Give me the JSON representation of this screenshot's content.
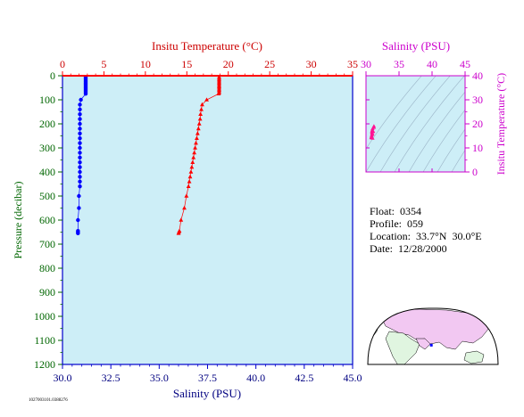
{
  "chart_data": [
    {
      "type": "scatter",
      "top_axis_label": "Insitu Temperature (°C)",
      "top_ticks": [
        0,
        5,
        10,
        15,
        20,
        25,
        30,
        35
      ],
      "top_range": [
        0,
        35
      ],
      "bottom_axis_label": "Salinity (PSU)",
      "bottom_ticks": [
        "30.0",
        "32.5",
        "35.0",
        "37.5",
        "40.0",
        "42.5",
        "45.0"
      ],
      "bottom_range": [
        30,
        45
      ],
      "ylabel": "Pressure (decibar)",
      "y_ticks": [
        0,
        100,
        200,
        300,
        400,
        500,
        600,
        700,
        800,
        900,
        1000,
        1100,
        1200
      ],
      "ylim": [
        0,
        1200
      ],
      "y_inverted": true,
      "series": [
        {
          "axis": "bottom",
          "color": "#0000ff",
          "marker": "circle",
          "points": [
            [
              31.2,
              5
            ],
            [
              31.2,
              10
            ],
            [
              31.2,
              15
            ],
            [
              31.2,
              20
            ],
            [
              31.2,
              25
            ],
            [
              31.2,
              30
            ],
            [
              31.2,
              35
            ],
            [
              31.2,
              40
            ],
            [
              31.2,
              45
            ],
            [
              31.2,
              50
            ],
            [
              31.2,
              55
            ],
            [
              31.2,
              60
            ],
            [
              31.2,
              65
            ],
            [
              31.2,
              70
            ],
            [
              31.2,
              75
            ],
            [
              30.95,
              100
            ],
            [
              30.9,
              120
            ],
            [
              30.9,
              140
            ],
            [
              30.9,
              160
            ],
            [
              30.9,
              180
            ],
            [
              30.9,
              200
            ],
            [
              30.9,
              220
            ],
            [
              30.9,
              240
            ],
            [
              30.9,
              260
            ],
            [
              30.9,
              280
            ],
            [
              30.9,
              300
            ],
            [
              30.9,
              320
            ],
            [
              30.9,
              340
            ],
            [
              30.9,
              360
            ],
            [
              30.9,
              380
            ],
            [
              30.9,
              400
            ],
            [
              30.9,
              420
            ],
            [
              30.9,
              440
            ],
            [
              30.9,
              460
            ],
            [
              30.85,
              500
            ],
            [
              30.85,
              550
            ],
            [
              30.8,
              600
            ],
            [
              30.8,
              645
            ],
            [
              30.8,
              650
            ],
            [
              30.8,
              655
            ]
          ]
        },
        {
          "axis": "top",
          "color": "#ff0000",
          "marker": "triangle",
          "points": [
            [
              18.9,
              5
            ],
            [
              18.9,
              10
            ],
            [
              18.9,
              15
            ],
            [
              18.9,
              20
            ],
            [
              18.9,
              25
            ],
            [
              18.9,
              30
            ],
            [
              18.9,
              35
            ],
            [
              18.9,
              40
            ],
            [
              18.9,
              45
            ],
            [
              18.9,
              50
            ],
            [
              18.9,
              55
            ],
            [
              18.9,
              60
            ],
            [
              18.9,
              65
            ],
            [
              18.9,
              70
            ],
            [
              18.85,
              75
            ],
            [
              17.4,
              100
            ],
            [
              16.85,
              120
            ],
            [
              16.75,
              140
            ],
            [
              16.65,
              160
            ],
            [
              16.6,
              180
            ],
            [
              16.5,
              200
            ],
            [
              16.4,
              220
            ],
            [
              16.3,
              240
            ],
            [
              16.2,
              260
            ],
            [
              16.1,
              280
            ],
            [
              16.0,
              300
            ],
            [
              15.9,
              320
            ],
            [
              15.8,
              340
            ],
            [
              15.7,
              360
            ],
            [
              15.6,
              380
            ],
            [
              15.5,
              400
            ],
            [
              15.4,
              420
            ],
            [
              15.3,
              440
            ],
            [
              15.2,
              460
            ],
            [
              14.95,
              500
            ],
            [
              14.7,
              550
            ],
            [
              14.3,
              600
            ],
            [
              14.1,
              645
            ],
            [
              14.05,
              650
            ],
            [
              14.0,
              655
            ]
          ]
        }
      ]
    },
    {
      "type": "scatter",
      "xlabel": "Salinity (PSU)",
      "x_ticks": [
        30,
        35,
        40,
        45
      ],
      "xlim": [
        30,
        45
      ],
      "ylabel": "Insitu Temperature (°C)",
      "y_ticks": [
        0,
        10,
        20,
        30,
        40
      ],
      "ylim": [
        0,
        40
      ],
      "series": [
        {
          "color": "#ff1493",
          "marker": "triangle",
          "points": [
            [
              31.2,
              19.0
            ],
            [
              31.2,
              18.5
            ],
            [
              31.0,
              18.0
            ],
            [
              30.95,
              17.5
            ],
            [
              30.9,
              17.0
            ],
            [
              30.9,
              16.5
            ],
            [
              30.9,
              16.0
            ],
            [
              30.9,
              15.5
            ],
            [
              30.85,
              15.0
            ],
            [
              30.8,
              14.5
            ],
            [
              30.8,
              14.2
            ],
            [
              31.0,
              14.0
            ],
            [
              31.1,
              16.8
            ],
            [
              31.0,
              15.8
            ]
          ]
        }
      ]
    }
  ],
  "info": {
    "float": "Float:  0354",
    "profile": "Profile:  059",
    "location": "Location:  33.7°N  30.0°E",
    "date": "Date:  12/28/2000"
  },
  "map": {
    "marker_lat": 33.7,
    "marker_lon": 30.0
  },
  "footer_id": "1027003101.0388276",
  "colors": {
    "plot_bg": "#cdeef7",
    "main_frame": "#0000cc",
    "temp_axis": "#ff0000",
    "temp_label": "#cc0000",
    "left_axis": "#006600",
    "salinity_label": "#000080",
    "ts_axis": "#cc00cc",
    "land": "#f2c8f2",
    "land_alt": "#e0f5e0"
  }
}
